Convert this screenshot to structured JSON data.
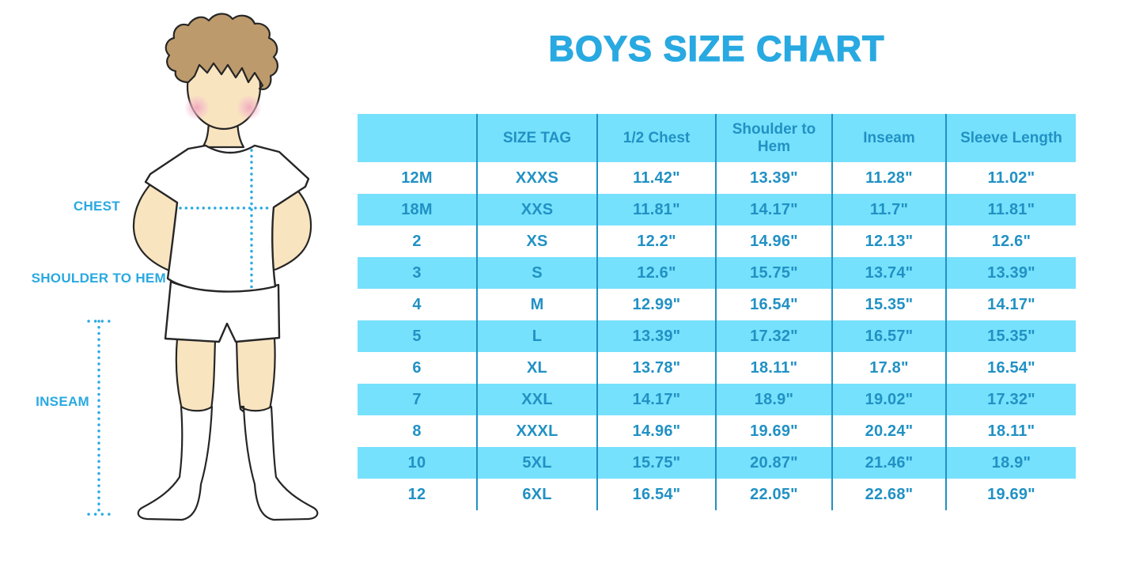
{
  "title": "BOYS SIZE CHART",
  "colors": {
    "title_blue": "#29A9E1",
    "band_blue": "#76E1FC",
    "table_text_blue": "#2191C4",
    "label_blue": "#29A9E1",
    "dotted_line_blue": "#29A9E1",
    "skin": "#F9E4C0",
    "hair_brown": "#BD9A6C",
    "blush_pink": "#F0A3BC",
    "outline": "#262626"
  },
  "figure": {
    "description": "boy-measurement-illustration",
    "labels": [
      {
        "id": "chest",
        "text": "CHEST"
      },
      {
        "id": "shoulder_to_hem",
        "text": "SHOULDER TO HEM"
      },
      {
        "id": "inseam",
        "text": "INSEAM"
      }
    ]
  },
  "chart_data": {
    "type": "table",
    "title": "BOYS SIZE CHART",
    "units": "inches",
    "columns": [
      "",
      "SIZE TAG",
      "1/2 Chest",
      "Shoulder to Hem",
      "Inseam",
      "Sleeve Length"
    ],
    "rows": [
      [
        "12M",
        "XXXS",
        "11.42\"",
        "13.39\"",
        "11.28\"",
        "11.02\""
      ],
      [
        "18M",
        "XXS",
        "11.81\"",
        "14.17\"",
        "11.7\"",
        "11.81\""
      ],
      [
        "2",
        "XS",
        "12.2\"",
        "14.96\"",
        "12.13\"",
        "12.6\""
      ],
      [
        "3",
        "S",
        "12.6\"",
        "15.75\"",
        "13.74\"",
        "13.39\""
      ],
      [
        "4",
        "M",
        "12.99\"",
        "16.54\"",
        "15.35\"",
        "14.17\""
      ],
      [
        "5",
        "L",
        "13.39\"",
        "17.32\"",
        "16.57\"",
        "15.35\""
      ],
      [
        "6",
        "XL",
        "13.78\"",
        "18.11\"",
        "17.8\"",
        "16.54\""
      ],
      [
        "7",
        "XXL",
        "14.17\"",
        "18.9\"",
        "19.02\"",
        "17.32\""
      ],
      [
        "8",
        "XXXL",
        "14.96\"",
        "19.69\"",
        "20.24\"",
        "18.11\""
      ],
      [
        "10",
        "5XL",
        "15.75\"",
        "20.87\"",
        "21.46\"",
        "18.9\""
      ],
      [
        "12",
        "6XL",
        "16.54\"",
        "22.05\"",
        "22.68\"",
        "19.69\""
      ]
    ],
    "banding": "header row and alternating data rows (18M, 3, 5, 7, 10) highlighted light blue",
    "legend_position": "none",
    "grid": "vertical column separators only"
  }
}
